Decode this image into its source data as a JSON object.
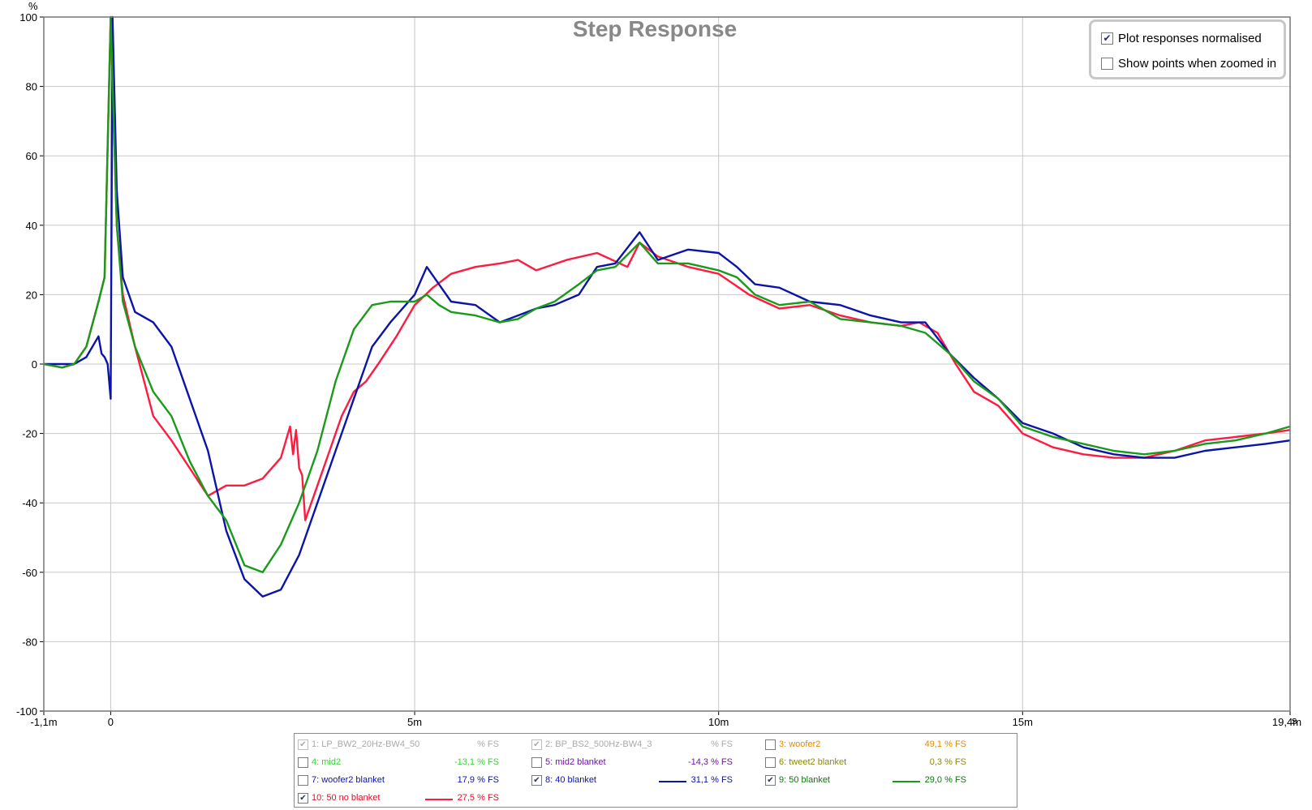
{
  "chart_data": {
    "type": "line",
    "title": "Step Response",
    "ylabel": "%",
    "xunit": "s",
    "xlim": [
      -0.0011,
      0.0194
    ],
    "ylim": [
      -100,
      100
    ],
    "grid": true,
    "x_ticks": [
      {
        "v": -0.0011,
        "label": "-1,1m"
      },
      {
        "v": 0,
        "label": "0"
      },
      {
        "v": 0.005,
        "label": "5m"
      },
      {
        "v": 0.01,
        "label": "10m"
      },
      {
        "v": 0.015,
        "label": "15m"
      },
      {
        "v": 0.0194,
        "label": "19,4m"
      }
    ],
    "y_ticks": [
      {
        "v": 100,
        "label": "100"
      },
      {
        "v": 80,
        "label": "80"
      },
      {
        "v": 60,
        "label": "60"
      },
      {
        "v": 40,
        "label": "40"
      },
      {
        "v": 20,
        "label": "20"
      },
      {
        "v": 0,
        "label": "0"
      },
      {
        "v": -20,
        "label": "-20"
      },
      {
        "v": -40,
        "label": "-40"
      },
      {
        "v": -60,
        "label": "-60"
      },
      {
        "v": -80,
        "label": "-80"
      },
      {
        "v": -100,
        "label": "-100"
      }
    ],
    "series": [
      {
        "name": "10: 50 no blanket",
        "color": "#ff1a40",
        "x": [
          -0.0011,
          -0.0008,
          -0.0006,
          -0.0004,
          -0.0002,
          -0.0001,
          0,
          5e-05,
          0.0001,
          0.0002,
          0.0004,
          0.0007,
          0.001,
          0.0013,
          0.0016,
          0.0019,
          0.0022,
          0.0025,
          0.0028,
          0.00295,
          0.003,
          0.00305,
          0.0031,
          0.00315,
          0.0032,
          0.0034,
          0.0036,
          0.0038,
          0.004,
          0.0042,
          0.0044,
          0.0047,
          0.005,
          0.0053,
          0.0056,
          0.006,
          0.0064,
          0.0067,
          0.007,
          0.0075,
          0.008,
          0.0085,
          0.0087,
          0.009,
          0.0095,
          0.01,
          0.0105,
          0.011,
          0.0115,
          0.012,
          0.0125,
          0.013,
          0.0133,
          0.0136,
          0.0139,
          0.0142,
          0.0146,
          0.015,
          0.0155,
          0.016,
          0.0165,
          0.017,
          0.0175,
          0.018,
          0.0185,
          0.019,
          0.0194
        ],
        "y": [
          0,
          -1,
          0,
          5,
          18,
          25,
          100,
          70,
          40,
          20,
          5,
          -15,
          -22,
          -30,
          -38,
          -35,
          -35,
          -33,
          -27,
          -18,
          -26,
          -19,
          -30,
          -32,
          -45,
          -35,
          -25,
          -15,
          -8,
          -5,
          0,
          8,
          17,
          22,
          26,
          28,
          29,
          30,
          27,
          30,
          32,
          28,
          35,
          31,
          28,
          26,
          20,
          16,
          17,
          14,
          12,
          11,
          12,
          9,
          0,
          -8,
          -12,
          -20,
          -24,
          -26,
          -27,
          -27,
          -25,
          -22,
          -21,
          -20,
          -19
        ]
      },
      {
        "name": "8: 40 blanket",
        "color": "#0b14a8",
        "x": [
          -0.0011,
          -0.0008,
          -0.0006,
          -0.0004,
          -0.0002,
          -0.00015,
          -0.0001,
          -5e-05,
          0,
          3e-05,
          0.0001,
          0.0002,
          0.0004,
          0.0007,
          0.001,
          0.0013,
          0.0016,
          0.0019,
          0.0022,
          0.0025,
          0.0028,
          0.0031,
          0.0034,
          0.0037,
          0.004,
          0.0043,
          0.0046,
          0.005,
          0.0052,
          0.0054,
          0.0056,
          0.006,
          0.0064,
          0.0067,
          0.007,
          0.0073,
          0.0077,
          0.008,
          0.0083,
          0.0087,
          0.009,
          0.0095,
          0.01,
          0.0103,
          0.0106,
          0.011,
          0.0115,
          0.012,
          0.0125,
          0.013,
          0.0134,
          0.0138,
          0.0142,
          0.0146,
          0.015,
          0.0155,
          0.016,
          0.0165,
          0.017,
          0.0175,
          0.018,
          0.0185,
          0.019,
          0.0194
        ],
        "y": [
          0,
          0,
          0,
          2,
          8,
          3,
          2,
          0,
          -10,
          100,
          50,
          25,
          15,
          12,
          5,
          -10,
          -25,
          -48,
          -62,
          -67,
          -65,
          -55,
          -40,
          -25,
          -10,
          5,
          12,
          20,
          28,
          23,
          18,
          17,
          12,
          14,
          16,
          17,
          20,
          28,
          29,
          38,
          30,
          33,
          32,
          28,
          23,
          22,
          18,
          17,
          14,
          12,
          12,
          3,
          -4,
          -10,
          -17,
          -20,
          -24,
          -26,
          -27,
          -27,
          -25,
          -24,
          -23,
          -22
        ]
      },
      {
        "name": "9: 50 blanket",
        "color": "#1a9a1a",
        "x": [
          -0.0011,
          -0.0008,
          -0.0006,
          -0.0004,
          -0.0002,
          -0.0001,
          0,
          5e-05,
          0.0001,
          0.0002,
          0.0004,
          0.0007,
          0.001,
          0.0013,
          0.0016,
          0.0019,
          0.0022,
          0.0025,
          0.0028,
          0.0031,
          0.0034,
          0.0037,
          0.004,
          0.0043,
          0.0046,
          0.005,
          0.0052,
          0.0054,
          0.0056,
          0.006,
          0.0064,
          0.0067,
          0.007,
          0.0073,
          0.0077,
          0.008,
          0.0083,
          0.0087,
          0.009,
          0.0095,
          0.01,
          0.0103,
          0.0106,
          0.011,
          0.0115,
          0.012,
          0.0125,
          0.013,
          0.0134,
          0.0138,
          0.0142,
          0.0146,
          0.015,
          0.0155,
          0.016,
          0.0165,
          0.017,
          0.0175,
          0.018,
          0.0185,
          0.019,
          0.0194
        ],
        "y": [
          0,
          -1,
          0,
          5,
          18,
          25,
          100,
          70,
          40,
          18,
          5,
          -8,
          -15,
          -28,
          -38,
          -45,
          -58,
          -60,
          -52,
          -40,
          -25,
          -5,
          10,
          17,
          18,
          18,
          20,
          17,
          15,
          14,
          12,
          13,
          16,
          18,
          23,
          27,
          28,
          35,
          29,
          29,
          27,
          25,
          20,
          17,
          18,
          13,
          12,
          11,
          9,
          3,
          -5,
          -10,
          -18,
          -21,
          -23,
          -25,
          -26,
          -25,
          -23,
          -22,
          -20,
          -18
        ]
      }
    ]
  },
  "options": {
    "normalised": {
      "label": "Plot responses normalised",
      "checked": true
    },
    "show_points": {
      "label": "Show points when zoomed in",
      "checked": false
    }
  },
  "legend": {
    "items": [
      {
        "label": "1: LP_BW2_20Hz-BW4_50",
        "value": "% FS",
        "color": "#a9a9a9",
        "checked": true,
        "dim": true,
        "swatch": ""
      },
      {
        "label": "2: BP_BS2_500Hz-BW4_3",
        "value": "% FS",
        "color": "#a9a9a9",
        "checked": true,
        "dim": true,
        "swatch": ""
      },
      {
        "label": "3: woofer2",
        "value": "49,1 % FS",
        "color": "#e58a00",
        "checked": false,
        "dim": false,
        "swatch": ""
      },
      {
        "label": "4: mid2",
        "value": "-13,1 % FS",
        "color": "#3ad03a",
        "checked": false,
        "dim": false,
        "swatch": ""
      },
      {
        "label": "5: mid2 blanket",
        "value": "-14,3 % FS",
        "color": "#6a1aa0",
        "checked": false,
        "dim": false,
        "swatch": ""
      },
      {
        "label": "6: tweet2 blanket",
        "value": "0,3 % FS",
        "color": "#8a8a00",
        "checked": false,
        "dim": false,
        "swatch": ""
      },
      {
        "label": "7: woofer2 blanket",
        "value": "17,9 % FS",
        "color": "#0b14a8",
        "checked": false,
        "dim": false,
        "swatch": ""
      },
      {
        "label": "8: 40 blanket",
        "value": "31,1 % FS",
        "color": "#0b14a8",
        "checked": true,
        "dim": false,
        "swatch": "#0b14a8"
      },
      {
        "label": "9: 50 blanket",
        "value": "29,0 % FS",
        "color": "#0b7a0b",
        "checked": true,
        "dim": false,
        "swatch": "#1a9a1a"
      },
      {
        "label": "10: 50 no blanket",
        "value": "27,5 % FS",
        "color": "#e0102a",
        "checked": true,
        "dim": false,
        "swatch": "#ff1a40"
      }
    ]
  }
}
